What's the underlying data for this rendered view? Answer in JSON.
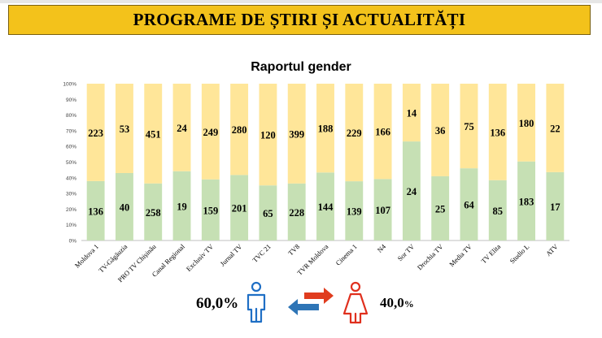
{
  "header": {
    "title": "PROGRAME DE ȘTIRI ȘI ACTUALITĂȚI"
  },
  "chart_data": {
    "type": "bar",
    "stacked": "percent",
    "title": "Raportul gender",
    "categories": [
      "Moldova 1",
      "TV-Găgăuzia",
      "PRO TV Chișinău",
      "Canal Regional",
      "Exclusiv TV",
      "Jurnal TV",
      "TVC 21",
      "TV8",
      "TVR Moldova",
      "Cinema 1",
      "N4",
      "Sor TV",
      "Drochia TV",
      "Media TV",
      "TV Elita",
      "Studio L",
      "ATV"
    ],
    "series": [
      {
        "values": [
          136,
          40,
          258,
          19,
          159,
          201,
          65,
          228,
          144,
          139,
          107,
          24,
          25,
          64,
          85,
          183,
          17
        ],
        "color": "#c6e0b4"
      },
      {
        "values": [
          223,
          53,
          451,
          24,
          249,
          280,
          120,
          399,
          188,
          229,
          166,
          14,
          36,
          75,
          136,
          180,
          22
        ],
        "color": "#ffe699"
      }
    ],
    "yticks": [
      "0%",
      "10%",
      "20%",
      "30%",
      "40%",
      "50%",
      "60%",
      "70%",
      "80%",
      "90%",
      "100%"
    ],
    "ylim": [
      0,
      100
    ],
    "grid": false
  },
  "summary": {
    "male_value": "60,0%",
    "female_value": "40,0",
    "female_unit": "%",
    "male_color": "#1f6fc5",
    "female_color": "#e0301e",
    "arrow_left_color": "#2e75b6",
    "arrow_right_color": "#e03c1e",
    "male_icon": "male-person-icon",
    "female_icon": "female-person-icon"
  }
}
